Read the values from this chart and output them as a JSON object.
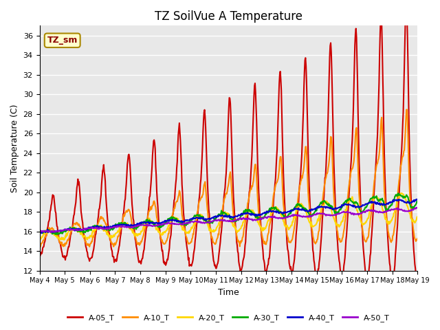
{
  "title": "TZ SoilVue A Temperature",
  "xlabel": "Time",
  "ylabel": "Soil Temperature (C)",
  "ylim": [
    12,
    37
  ],
  "yticks": [
    12,
    14,
    16,
    18,
    20,
    22,
    24,
    26,
    28,
    30,
    32,
    34,
    36
  ],
  "annotation": "TZ_sm",
  "annotation_color": "#8B0000",
  "annotation_bg": "#FFFFCC",
  "background_color": "#E8E8E8",
  "series": {
    "A-05_T": {
      "color": "#CC0000",
      "linewidth": 1.5
    },
    "A-10_T": {
      "color": "#FF8C00",
      "linewidth": 1.5
    },
    "A-20_T": {
      "color": "#FFD700",
      "linewidth": 1.5
    },
    "A-30_T": {
      "color": "#00AA00",
      "linewidth": 1.5
    },
    "A-40_T": {
      "color": "#0000CC",
      "linewidth": 1.5
    },
    "A-50_T": {
      "color": "#9900CC",
      "linewidth": 1.5
    }
  },
  "legend_order": [
    "A-05_T",
    "A-10_T",
    "A-20_T",
    "A-30_T",
    "A-40_T",
    "A-50_T"
  ],
  "xtick_labels": [
    "May 4",
    "May 5",
    "May 6",
    "May 7",
    "May 8",
    "May 9",
    "May 10",
    "May 11",
    "May 12",
    "May 13",
    "May 14",
    "May 15",
    "May 16",
    "May 17",
    "May 18",
    "May 19"
  ],
  "num_days": 15,
  "points_per_day": 48
}
